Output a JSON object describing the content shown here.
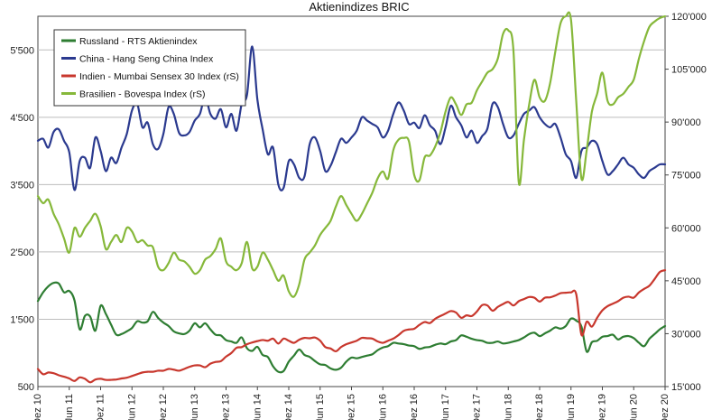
{
  "chart_data": {
    "type": "line",
    "title": "Aktienindizes BRIC",
    "x_ticks": [
      "Dez 10",
      "Jun 11",
      "Dez 11",
      "Jun 12",
      "Dez 12",
      "Jun 13",
      "Dez 13",
      "Jun 14",
      "Dez 14",
      "Jun 15",
      "Dez 15",
      "Jun 16",
      "Dez 16",
      "Jun 17",
      "Dez 17",
      "Jun 18",
      "Dez 18",
      "Jun 19",
      "Dez 19",
      "Jun 20",
      "Dez 20"
    ],
    "y_left": {
      "ylim": [
        500,
        6000
      ],
      "ticks": [
        500,
        1500,
        2500,
        3500,
        4500,
        5500
      ],
      "tick_labels": [
        "500",
        "1'500",
        "2'500",
        "3'500",
        "4'500",
        "5'500"
      ]
    },
    "y_right": {
      "ylim": [
        15000,
        120000
      ],
      "ticks": [
        15000,
        30000,
        45000,
        60000,
        75000,
        90000,
        105000,
        120000
      ],
      "tick_labels": [
        "15'000",
        "30'000",
        "45'000",
        "60'000",
        "75'000",
        "90'000",
        "105'000",
        "120'000"
      ]
    },
    "grid": true,
    "legend_position": "top-left",
    "series": [
      {
        "name": "Russland - RTS Aktienindex",
        "axis": "left",
        "color": "#2e7d32",
        "x": [
          0,
          1,
          2,
          3,
          4,
          5,
          6,
          7,
          8,
          9,
          10,
          11,
          12,
          13,
          14,
          15,
          16,
          17,
          18,
          19,
          20,
          21,
          22,
          23,
          24,
          25,
          26,
          27,
          28,
          29,
          30,
          31,
          32,
          33,
          34,
          35,
          36,
          37,
          38,
          39,
          40,
          41,
          42,
          43,
          44,
          45,
          46,
          47,
          48,
          49,
          50,
          51,
          52,
          53,
          54,
          55,
          56,
          57,
          58,
          59,
          60,
          61,
          62,
          63,
          64,
          65,
          66,
          67,
          68,
          69,
          70,
          71,
          72,
          73,
          74,
          75,
          76,
          77,
          78,
          79,
          80,
          81,
          82,
          83,
          84,
          85,
          86,
          87,
          88,
          89,
          90,
          91,
          92,
          93,
          94,
          95,
          96,
          97,
          98,
          99,
          100,
          101,
          102,
          103,
          104,
          105,
          106,
          107,
          108,
          109,
          110,
          111,
          112,
          113,
          114,
          115,
          116,
          117,
          118,
          119,
          120
        ],
        "values": [
          1770,
          1900,
          1990,
          2040,
          2030,
          1900,
          1920,
          1780,
          1350,
          1550,
          1540,
          1330,
          1700,
          1580,
          1420,
          1270,
          1280,
          1320,
          1370,
          1470,
          1450,
          1470,
          1610,
          1520,
          1450,
          1400,
          1320,
          1290,
          1280,
          1330,
          1440,
          1380,
          1440,
          1350,
          1270,
          1260,
          1190,
          1170,
          1150,
          1230,
          1070,
          1030,
          1090,
          970,
          940,
          800,
          720,
          730,
          870,
          960,
          1050,
          970,
          940,
          880,
          830,
          820,
          770,
          750,
          780,
          870,
          930,
          920,
          940,
          960,
          980,
          1040,
          1080,
          1100,
          1150,
          1140,
          1130,
          1110,
          1100,
          1060,
          1080,
          1090,
          1120,
          1140,
          1130,
          1170,
          1190,
          1260,
          1240,
          1210,
          1190,
          1180,
          1150,
          1150,
          1170,
          1140,
          1150,
          1170,
          1190,
          1230,
          1280,
          1300,
          1250,
          1290,
          1330,
          1380,
          1360,
          1400,
          1510,
          1480,
          1390,
          1020,
          1160,
          1180,
          1240,
          1250,
          1270,
          1200,
          1240,
          1250,
          1220,
          1150,
          1100,
          1210,
          1280,
          1350,
          1400
        ]
      },
      {
        "name": "China - Hang Seng China Index",
        "axis": "left",
        "color": "#2b3a8f",
        "x": [
          0,
          1,
          2,
          3,
          4,
          5,
          6,
          7,
          8,
          9,
          10,
          11,
          12,
          13,
          14,
          15,
          16,
          17,
          18,
          19,
          20,
          21,
          22,
          23,
          24,
          25,
          26,
          27,
          28,
          29,
          30,
          31,
          32,
          33,
          34,
          35,
          36,
          37,
          38,
          39,
          40,
          41,
          42,
          43,
          44,
          45,
          46,
          47,
          48,
          49,
          50,
          51,
          52,
          53,
          54,
          55,
          56,
          57,
          58,
          59,
          60,
          61,
          62,
          63,
          64,
          65,
          66,
          67,
          68,
          69,
          70,
          71,
          72,
          73,
          74,
          75,
          76,
          77,
          78,
          79,
          80,
          81,
          82,
          83,
          84,
          85,
          86,
          87,
          88,
          89,
          90,
          91,
          92,
          93,
          94,
          95,
          96,
          97,
          98,
          99,
          100,
          101,
          102,
          103,
          104,
          105,
          106,
          107,
          108,
          109,
          110,
          111,
          112,
          113,
          114,
          115,
          116,
          117,
          118,
          119,
          120
        ],
        "values": [
          4150,
          4180,
          4050,
          4280,
          4320,
          4150,
          3980,
          3420,
          3850,
          3900,
          3750,
          4200,
          4000,
          3700,
          3900,
          3820,
          4050,
          4250,
          4600,
          4700,
          4350,
          4420,
          4100,
          4030,
          4250,
          4650,
          4550,
          4270,
          4230,
          4280,
          4450,
          4550,
          4800,
          4550,
          4480,
          4620,
          4350,
          4550,
          4300,
          4700,
          4830,
          5550,
          4760,
          4320,
          3950,
          4050,
          3500,
          3450,
          3850,
          3800,
          3600,
          3620,
          4100,
          4200,
          4000,
          3700,
          3780,
          3980,
          4180,
          4120,
          4200,
          4300,
          4500,
          4450,
          4400,
          4350,
          4200,
          4300,
          4550,
          4720,
          4600,
          4400,
          4420,
          4340,
          4530,
          4380,
          4300,
          4100,
          4350,
          4670,
          4500,
          4380,
          4200,
          4300,
          4120,
          4220,
          4330,
          4700,
          4650,
          4400,
          4200,
          4230,
          4400,
          4550,
          4600,
          4650,
          4500,
          4400,
          4350,
          4400,
          4200,
          3950,
          3850,
          3600,
          4000,
          4050,
          4150,
          4100,
          3850,
          3650,
          3700,
          3800,
          3900,
          3800,
          3750,
          3650,
          3600,
          3700,
          3750,
          3800,
          3800
        ]
      },
      {
        "name": "Indien - Mumbai Sensex 30 Index (rS)",
        "axis": "right",
        "color": "#c8372d",
        "x": [
          0,
          1,
          2,
          3,
          4,
          5,
          6,
          7,
          8,
          9,
          10,
          11,
          12,
          13,
          14,
          15,
          16,
          17,
          18,
          19,
          20,
          21,
          22,
          23,
          24,
          25,
          26,
          27,
          28,
          29,
          30,
          31,
          32,
          33,
          34,
          35,
          36,
          37,
          38,
          39,
          40,
          41,
          42,
          43,
          44,
          45,
          46,
          47,
          48,
          49,
          50,
          51,
          52,
          53,
          54,
          55,
          56,
          57,
          58,
          59,
          60,
          61,
          62,
          63,
          64,
          65,
          66,
          67,
          68,
          69,
          70,
          71,
          72,
          73,
          74,
          75,
          76,
          77,
          78,
          79,
          80,
          81,
          82,
          83,
          84,
          85,
          86,
          87,
          88,
          89,
          90,
          91,
          92,
          93,
          94,
          95,
          96,
          97,
          98,
          99,
          100,
          101,
          102,
          103,
          104,
          105,
          106,
          107,
          108,
          109,
          110,
          111,
          112,
          113,
          114,
          115,
          116,
          117,
          118,
          119,
          120
        ],
        "values": [
          20000,
          18500,
          19000,
          18800,
          18200,
          17800,
          17300,
          16600,
          17600,
          17200,
          16200,
          17000,
          17200,
          16900,
          16900,
          17000,
          17300,
          17500,
          18000,
          18500,
          19000,
          19200,
          19200,
          19500,
          19500,
          20000,
          19800,
          19500,
          20000,
          20600,
          21000,
          21000,
          20500,
          21500,
          22000,
          22200,
          23500,
          24500,
          26000,
          26200,
          27000,
          27500,
          27900,
          28200,
          28000,
          28600,
          27200,
          28600,
          28000,
          27400,
          28300,
          28800,
          28700,
          28900,
          28000,
          26200,
          25800,
          25000,
          26200,
          27000,
          27500,
          28000,
          28800,
          28700,
          28600,
          27800,
          27400,
          28000,
          28600,
          29600,
          30800,
          31200,
          31400,
          32500,
          33300,
          33000,
          34200,
          35000,
          35700,
          36400,
          36000,
          34500,
          35200,
          35000,
          36300,
          38100,
          38000,
          36500,
          37600,
          38400,
          39000,
          38000,
          39200,
          39800,
          40400,
          40200,
          39100,
          40200,
          40300,
          40800,
          41500,
          41600,
          41700,
          41200,
          29700,
          33400,
          32000,
          34500,
          36600,
          37800,
          38500,
          39200,
          40200,
          40500,
          40200,
          41700,
          42700,
          43600,
          45500,
          47500,
          48000
        ]
      },
      {
        "name": "Brasilien - Bovespa Index (rS)",
        "axis": "right",
        "color": "#86b83a",
        "x": [
          0,
          1,
          2,
          3,
          4,
          5,
          6,
          7,
          8,
          9,
          10,
          11,
          12,
          13,
          14,
          15,
          16,
          17,
          18,
          19,
          20,
          21,
          22,
          23,
          24,
          25,
          26,
          27,
          28,
          29,
          30,
          31,
          32,
          33,
          34,
          35,
          36,
          37,
          38,
          39,
          40,
          41,
          42,
          43,
          44,
          45,
          46,
          47,
          48,
          49,
          50,
          51,
          52,
          53,
          54,
          55,
          56,
          57,
          58,
          59,
          60,
          61,
          62,
          63,
          64,
          65,
          66,
          67,
          68,
          69,
          70,
          71,
          72,
          73,
          74,
          75,
          76,
          77,
          78,
          79,
          80,
          81,
          82,
          83,
          84,
          85,
          86,
          87,
          88,
          89,
          90,
          91,
          92,
          93,
          94,
          95,
          96,
          97,
          98,
          99,
          100,
          101,
          102,
          103,
          104,
          105,
          106,
          107,
          108,
          109,
          110,
          111,
          112,
          113,
          114,
          115,
          116,
          117,
          118,
          119,
          120
        ],
        "values": [
          69000,
          67000,
          68000,
          64000,
          61000,
          57000,
          53000,
          60000,
          57500,
          60000,
          62000,
          64000,
          60500,
          54000,
          56000,
          58000,
          56000,
          60000,
          59000,
          56000,
          56500,
          55000,
          54500,
          49000,
          48000,
          50000,
          53000,
          51000,
          50500,
          49000,
          47000,
          48000,
          51000,
          52000,
          54000,
          57000,
          50500,
          49000,
          48000,
          50000,
          56000,
          48500,
          49000,
          53000,
          51000,
          48000,
          45000,
          46500,
          42000,
          40500,
          44000,
          51000,
          53000,
          55000,
          58000,
          60000,
          62000,
          66000,
          69000,
          66500,
          64000,
          62000,
          64000,
          67000,
          70000,
          74000,
          76000,
          74000,
          82000,
          85000,
          85500,
          84500,
          75000,
          73500,
          80000,
          80500,
          83000,
          87000,
          93000,
          97000,
          95000,
          92000,
          95000,
          95500,
          99000,
          101500,
          104000,
          105000,
          108000,
          115000,
          116000,
          110000,
          73000,
          85000,
          95000,
          102000,
          97000,
          96000,
          101000,
          110000,
          118000,
          120000,
          119000,
          96000,
          74000,
          82000,
          93000,
          98000,
          104000,
          96000,
          95000,
          97000,
          98000,
          100000,
          102000,
          108000,
          113000,
          117000,
          118500,
          119500,
          120000
        ]
      }
    ]
  }
}
